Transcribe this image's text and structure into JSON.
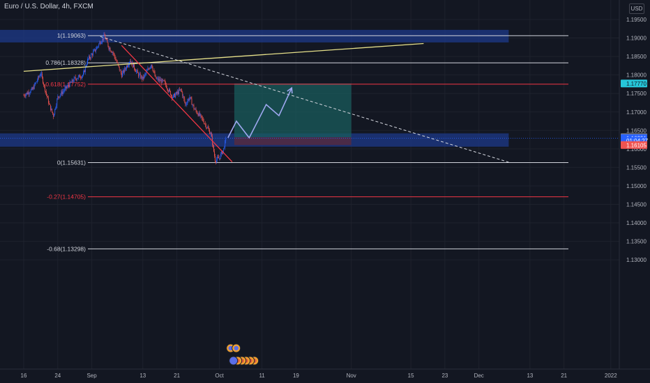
{
  "header": {
    "title": "Euro / U.S. Dollar, 4h, FXCM"
  },
  "currency_badge": "USD",
  "colors": {
    "background": "#131722",
    "grid": "#1e222d",
    "axis_text": "#b2b5be",
    "candle_up": "#2962ff",
    "candle_down": "#ef5350",
    "fib_red": "#f23645",
    "fib_white": "#d1d4dc",
    "zone_blue": "#1e3a8a",
    "target_zone": "#1a5c5c",
    "stop_zone": "#5c2a3a",
    "trend_yellow": "#e6e08a",
    "projection": "#9fa8f0"
  },
  "chart_data": {
    "type": "candlestick",
    "title": "Euro / U.S. Dollar, 4h, FXCM",
    "ylim": [
      1.127,
      1.1965
    ],
    "y_ticks": [
      1.195,
      1.19,
      1.185,
      1.18,
      1.175,
      1.17,
      1.165,
      1.16,
      1.155,
      1.15,
      1.145,
      1.14,
      1.135,
      1.13
    ],
    "x_ticks": [
      {
        "label": "16",
        "day": 0
      },
      {
        "label": "24",
        "day": 8
      },
      {
        "label": "Sep",
        "day": 16
      },
      {
        "label": "13",
        "day": 28
      },
      {
        "label": "21",
        "day": 36
      },
      {
        "label": "Oct",
        "day": 46
      },
      {
        "label": "11",
        "day": 56
      },
      {
        "label": "19",
        "day": 64
      },
      {
        "label": "Nov",
        "day": 77
      },
      {
        "label": "15",
        "day": 91
      },
      {
        "label": "23",
        "day": 99
      },
      {
        "label": "Dec",
        "day": 107
      },
      {
        "label": "13",
        "day": 119
      },
      {
        "label": "21",
        "day": 127
      },
      {
        "label": "2022",
        "day": 138
      }
    ],
    "price_path": [
      [
        0,
        1.1745
      ],
      [
        2,
        1.176
      ],
      [
        4,
        1.1805
      ],
      [
        6,
        1.172
      ],
      [
        7,
        1.169
      ],
      [
        8,
        1.174
      ],
      [
        10,
        1.1765
      ],
      [
        12,
        1.179
      ],
      [
        14,
        1.18
      ],
      [
        15,
        1.184
      ],
      [
        17,
        1.187
      ],
      [
        18,
        1.189
      ],
      [
        19,
        1.1905
      ],
      [
        20,
        1.1875
      ],
      [
        21,
        1.186
      ],
      [
        23,
        1.18
      ],
      [
        25,
        1.184
      ],
      [
        27,
        1.18
      ],
      [
        28,
        1.179
      ],
      [
        30,
        1.183
      ],
      [
        31,
        1.179
      ],
      [
        33,
        1.178
      ],
      [
        35,
        1.174
      ],
      [
        37,
        1.176
      ],
      [
        38,
        1.172
      ],
      [
        39,
        1.174
      ],
      [
        40,
        1.171
      ],
      [
        42,
        1.168
      ],
      [
        44,
        1.164
      ],
      [
        45,
        1.157
      ],
      [
        46,
        1.1575
      ],
      [
        47,
        1.16
      ],
      [
        47.6,
        1.1629
      ]
    ],
    "fib_levels": [
      {
        "label": "1(1.19063)",
        "value": 1.19063,
        "color": "#d1d4dc"
      },
      {
        "label": "0.786(1.18328)",
        "value": 1.18328,
        "color": "#d1d4dc"
      },
      {
        "label": "0.618(1.17752)",
        "value": 1.17752,
        "color": "#f23645"
      },
      {
        "label": "0(1.15631)",
        "value": 1.15631,
        "color": "#d1d4dc"
      },
      {
        "label": "-0.27(1.14705)",
        "value": 1.14705,
        "color": "#f23645"
      },
      {
        "label": "-0.68(1.13298)",
        "value": 1.13298,
        "color": "#d1d4dc"
      }
    ],
    "price_labels": [
      {
        "text": "1.17770",
        "value": 1.1777,
        "bg": "#26c6da",
        "fg": "#131722"
      },
      {
        "text": "1.16317",
        "value": 1.16317,
        "bg": "#787b86",
        "fg": "#ffffff"
      },
      {
        "text": "1.16291",
        "value": 1.16291,
        "bg": "#2962ff",
        "fg": "#ffffff"
      },
      {
        "text": "01:04:27",
        "value": 1.1622,
        "bg": "#2962ff",
        "fg": "#ffffff"
      },
      {
        "text": "1.16105",
        "value": 1.16105,
        "bg": "#ef5350",
        "fg": "#ffffff"
      }
    ],
    "current_price": 1.16291,
    "zones": [
      {
        "name": "resistance-zone",
        "day_from": -12,
        "day_to": 114,
        "y_from": 1.1888,
        "y_to": 1.1922,
        "color": "#1e3a8a"
      },
      {
        "name": "support-zone",
        "day_from": -12,
        "day_to": 114,
        "y_from": 1.1606,
        "y_to": 1.1642,
        "color": "#1e3a8a"
      },
      {
        "name": "target-zone",
        "day_from": 49.5,
        "day_to": 77,
        "y_from": 1.16317,
        "y_to": 1.1777,
        "color": "#1a5c5c"
      },
      {
        "name": "stop-zone",
        "day_from": 49.5,
        "day_to": 77,
        "y_from": 1.16105,
        "y_to": 1.16317,
        "color": "#5c2a3a"
      }
    ],
    "lines": [
      {
        "name": "yellow-trendline",
        "from": [
          0,
          1.181
        ],
        "to": [
          94,
          1.1885
        ],
        "color": "#e6e08a",
        "dash": false
      },
      {
        "name": "red-trendline",
        "from": [
          23,
          1.188
        ],
        "to": [
          49,
          1.1565
        ],
        "color": "#f23645",
        "dash": false
      },
      {
        "name": "dashed-trendline",
        "from": [
          18,
          1.1904
        ],
        "to": [
          114,
          1.1564
        ],
        "color": "#d1d4dc",
        "dash": true
      }
    ],
    "projection_path": [
      [
        48,
        1.163
      ],
      [
        50,
        1.1675
      ],
      [
        53,
        1.163
      ],
      [
        57,
        1.172
      ],
      [
        60,
        1.169
      ],
      [
        63,
        1.1765
      ]
    ],
    "event_badges_day": 47
  }
}
